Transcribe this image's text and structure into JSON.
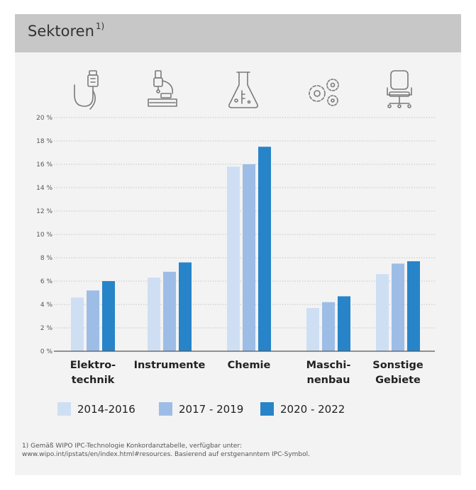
{
  "header": {
    "title": "Sektoren",
    "title_note": "1)"
  },
  "icons": [
    "usb-plug-icon",
    "microscope-icon",
    "flask-icon",
    "gears-icon",
    "office-chair-icon"
  ],
  "colors": {
    "header_bg": "#c7c7c7",
    "panel_bg": "#f3f3f3",
    "axis": "#555555",
    "grid": "#b5b5b5",
    "icon_stroke": "#7a7a7a"
  },
  "chart_data": {
    "type": "bar",
    "title": "",
    "xlabel": "",
    "ylabel": "",
    "ylim": [
      0,
      20
    ],
    "y_ticks": [
      "0 %",
      "2 %",
      "4 %",
      "6 %",
      "8 %",
      "10 %",
      "12 %",
      "14 %",
      "16 %",
      "18 %",
      "20 %"
    ],
    "categories": [
      {
        "line1": "Elektro-",
        "line2": "technik"
      },
      {
        "line1": "Instrumente",
        "line2": ""
      },
      {
        "line1": "Chemie",
        "line2": ""
      },
      {
        "line1": "Maschi-",
        "line2": "nenbau"
      },
      {
        "line1": "Sonstige",
        "line2": "Gebiete"
      }
    ],
    "series": [
      {
        "name": "2014-2016",
        "color": "#cfdff3",
        "values": [
          4.6,
          6.3,
          15.8,
          3.7,
          6.6
        ]
      },
      {
        "name": "2017 - 2019",
        "color": "#9dbde6",
        "values": [
          5.2,
          6.8,
          16.0,
          4.2,
          7.5
        ]
      },
      {
        "name": "2020 - 2022",
        "color": "#2784c8",
        "values": [
          6.0,
          7.6,
          17.5,
          4.7,
          7.7
        ]
      }
    ],
    "grid": true,
    "legend_position": "bottom"
  },
  "footnote": {
    "line1": "1) Gemäß WIPO IPC-Technologie Konkordanztabelle, verfügbar unter:",
    "line2": "www.wipo.int/ipstats/en/index.html#resources. Basierend auf erstgenanntem IPC-Symbol."
  }
}
